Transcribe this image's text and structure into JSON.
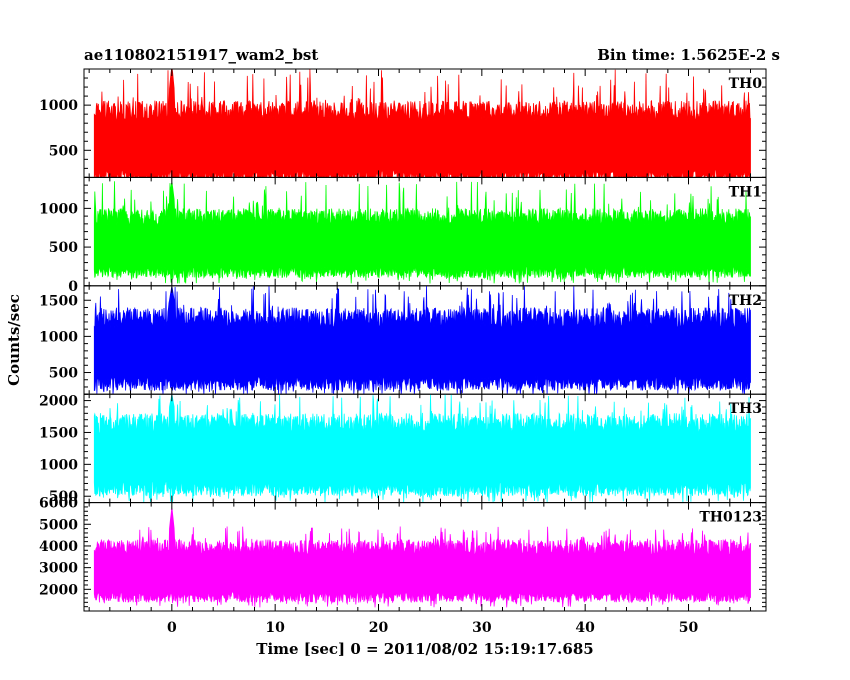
{
  "header": {
    "title": "ae110802151917_wam2_bst",
    "bin_time": "Bin time: 1.5625E-2 s"
  },
  "chart_data": {
    "type": "line",
    "title": "ae110802151917_wam2_bst",
    "subtitle": "Bin time: 1.5625E-2 s",
    "xlabel": "Time [sec] 0 = 2011/08/02 15:19:17.685",
    "ylabel": "Counts/sec",
    "xlim": [
      -8.5,
      57.5
    ],
    "x_ticks": [
      0,
      10,
      20,
      30,
      40,
      50
    ],
    "x_tick_labels": [
      "0",
      "10",
      "20",
      "30",
      "40",
      "50"
    ],
    "data_x_range": [
      -7.5,
      56
    ],
    "bin_time_s": 0.015625,
    "panels": [
      {
        "name": "TH0",
        "color": "#ff0000",
        "ylim": [
          200,
          1400
        ],
        "y_ticks": [
          500,
          1000
        ],
        "y_tick_labels": [
          "500",
          "1000"
        ],
        "typical_low": 120,
        "typical_high": 1050,
        "spike_max": 1400,
        "burst_time": 0.0,
        "burst_level": 1450
      },
      {
        "name": "TH1",
        "color": "#00ff00",
        "ylim": [
          0,
          1400
        ],
        "y_ticks": [
          0,
          500,
          1000
        ],
        "y_tick_labels": [
          "0",
          "500",
          "1000"
        ],
        "typical_low": 100,
        "typical_high": 1000,
        "spike_max": 1350,
        "burst_time": 0.0,
        "burst_level": 1350
      },
      {
        "name": "TH2",
        "color": "#0000ff",
        "ylim": [
          200,
          1700
        ],
        "y_ticks": [
          500,
          1000,
          1500
        ],
        "y_tick_labels": [
          "500",
          "1000",
          "1500"
        ],
        "typical_low": 250,
        "typical_high": 1400,
        "spike_max": 1700,
        "burst_time": 0.0,
        "burst_level": 1700
      },
      {
        "name": "TH3",
        "color": "#00ffff",
        "ylim": [
          400,
          2100
        ],
        "y_ticks": [
          500,
          1000,
          1500,
          2000
        ],
        "y_tick_labels": [
          "500",
          "1000",
          "1500",
          "2000"
        ],
        "typical_low": 500,
        "typical_high": 1800,
        "spike_max": 2100,
        "burst_time": 0.0,
        "burst_level": 2100
      },
      {
        "name": "TH0123",
        "color": "#ff00ff",
        "ylim": [
          1000,
          6000
        ],
        "y_ticks": [
          2000,
          3000,
          4000,
          5000,
          6000
        ],
        "y_tick_labels": [
          "2000",
          "3000",
          "4000",
          "5000",
          "6000"
        ],
        "typical_low": 1400,
        "typical_high": 4300,
        "spike_max": 4900,
        "burst_time": 0.0,
        "burst_level": 5800
      }
    ]
  }
}
